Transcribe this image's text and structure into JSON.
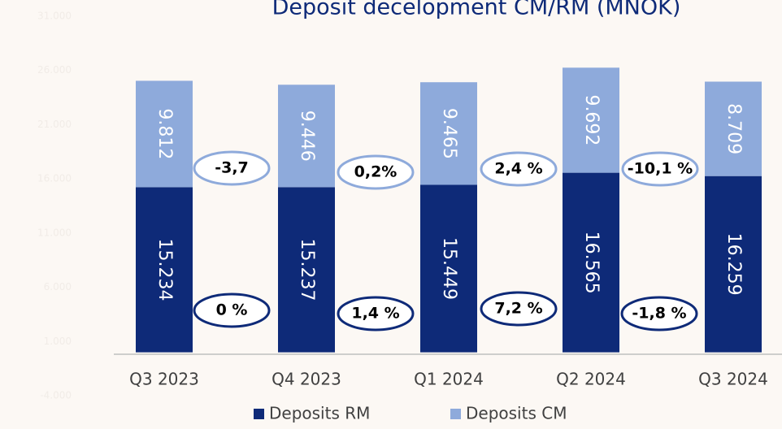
{
  "chart_data": {
    "type": "bar",
    "stacked": true,
    "title": "Deposit decelopment CM/RM (MNOK)",
    "categories": [
      "Q3 2023",
      "Q4 2023",
      "Q1 2024",
      "Q2 2024",
      "Q3 2024"
    ],
    "series": [
      {
        "name": "Deposits RM",
        "color": "#0e2a78",
        "values": [
          15234,
          15237,
          15449,
          16565,
          16259
        ],
        "value_labels": [
          "15.234",
          "15.237",
          "15.449",
          "16.565",
          "16.259"
        ]
      },
      {
        "name": "Deposits CM",
        "color": "#8eaadb",
        "values": [
          9812,
          9446,
          9465,
          9692,
          8709
        ],
        "value_labels": [
          "9.812",
          "9.446",
          "9.465",
          "9.692",
          "8.709"
        ]
      }
    ],
    "ylim": [
      -4000,
      31000
    ],
    "yticks": [
      {
        "value": -4000,
        "label": "-4.000"
      },
      {
        "value": 1000,
        "label": "1.000"
      },
      {
        "value": 6000,
        "label": "6.000"
      },
      {
        "value": 11000,
        "label": "11.000"
      },
      {
        "value": 16000,
        "label": "16.000"
      },
      {
        "value": 21000,
        "label": "21.000"
      },
      {
        "value": 26000,
        "label": "26.000"
      },
      {
        "value": 31000,
        "label": "31.000"
      }
    ],
    "annotations": {
      "cm_changes": [
        "-3,7",
        "0,2%",
        "2,4 %",
        "-10,1 %"
      ],
      "rm_changes": [
        "0 %",
        "1,4 %",
        "7,2 %",
        "-1,8 %"
      ]
    },
    "legend": "bottom"
  }
}
